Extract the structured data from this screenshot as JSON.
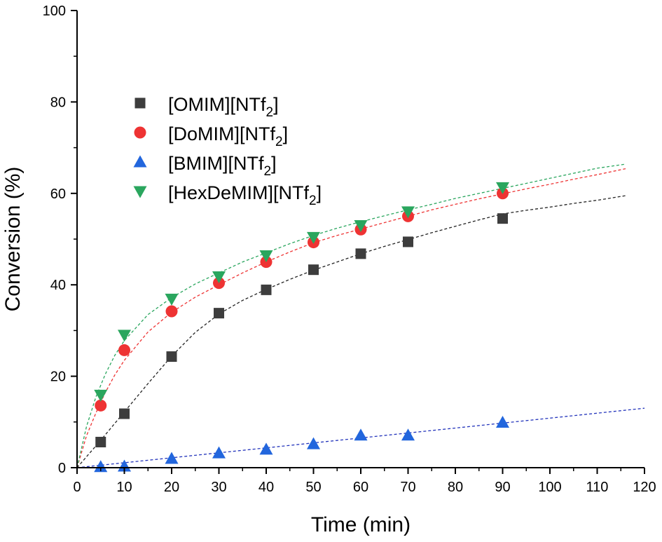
{
  "chart_data": {
    "type": "scatter",
    "xlabel": "Time (min)",
    "ylabel": "Conversion (%)",
    "xlim": [
      0,
      120
    ],
    "ylim": [
      0,
      100
    ],
    "xticks": [
      0,
      10,
      20,
      30,
      40,
      50,
      60,
      70,
      80,
      90,
      100,
      110,
      120
    ],
    "yticks": [
      0,
      20,
      40,
      60,
      80,
      100
    ],
    "grid": false,
    "legend_position": "top-left",
    "series": [
      {
        "name": "[OMIM][NTf2]",
        "label_main": "[OMIM][NTf",
        "label_sub": "2",
        "label_end": "]",
        "marker": "square",
        "color": "#3d3d3d",
        "fit_color": "#222222",
        "x": [
          5,
          10,
          20,
          30,
          40,
          50,
          60,
          70,
          90
        ],
        "y": [
          5.6,
          11.8,
          24.3,
          33.8,
          38.9,
          43.3,
          46.8,
          49.4,
          54.5
        ],
        "fit_x": [
          0,
          5,
          10,
          15,
          20,
          25,
          30,
          35,
          40,
          45,
          50,
          55,
          60,
          65,
          70,
          75,
          80,
          85,
          90,
          95,
          100,
          105,
          110,
          116
        ],
        "fit_y": [
          0,
          6.0,
          12.2,
          18.4,
          24.4,
          29.6,
          33.6,
          36.6,
          39.0,
          41.2,
          43.2,
          45.0,
          46.8,
          48.4,
          49.9,
          51.4,
          52.8,
          54.2,
          55.5,
          56.3,
          57.0,
          57.8,
          58.5,
          59.5
        ]
      },
      {
        "name": "[DoMIM][NTf2]",
        "label_main": "[DoMIM][NTf",
        "label_sub": "2",
        "label_end": "]",
        "marker": "circle",
        "color": "#ee3333",
        "fit_color": "#ee3333",
        "x": [
          5,
          10,
          20,
          30,
          40,
          50,
          60,
          70,
          90
        ],
        "y": [
          13.6,
          25.7,
          34.2,
          40.4,
          45.0,
          49.3,
          52.1,
          55.0,
          60.0
        ],
        "fit_x": [
          0,
          2,
          4,
          6,
          8,
          10,
          15,
          20,
          25,
          30,
          35,
          40,
          45,
          50,
          55,
          60,
          65,
          70,
          75,
          80,
          85,
          90,
          95,
          100,
          105,
          110,
          116
        ],
        "fit_y": [
          0,
          7.0,
          12.0,
          16.5,
          20.3,
          23.5,
          29.7,
          34.0,
          37.3,
          40.0,
          42.6,
          45.0,
          47.2,
          49.2,
          50.8,
          52.2,
          53.6,
          55.0,
          56.4,
          57.6,
          58.8,
          59.9,
          61.0,
          62.0,
          63.1,
          64.1,
          65.4
        ]
      },
      {
        "name": "[BMIM][NTf2]",
        "label_main": "[BMIM][NTf",
        "label_sub": "2",
        "label_end": "]",
        "marker": "triangle-up",
        "color": "#2266dd",
        "fit_color": "#2233bb",
        "x": [
          5,
          10,
          20,
          30,
          40,
          50,
          60,
          70,
          90
        ],
        "y": [
          0.2,
          0.3,
          2.0,
          3.2,
          4.0,
          5.2,
          7.1,
          7.1,
          9.9
        ],
        "fit_x": [
          0,
          120
        ],
        "fit_y": [
          0,
          13.0
        ]
      },
      {
        "name": "[HexDeMIM][NTf2]",
        "label_main": "[HexDeMIM][NTf",
        "label_sub": "2",
        "label_end": "]",
        "marker": "triangle-down",
        "color": "#2aa65e",
        "fit_color": "#2aa65e",
        "x": [
          5,
          10,
          20,
          30,
          40,
          50,
          60,
          70,
          90
        ],
        "y": [
          15.9,
          29.0,
          36.9,
          41.8,
          46.4,
          50.4,
          53.0,
          56.0,
          61.3
        ],
        "fit_x": [
          0,
          2,
          4,
          6,
          8,
          10,
          15,
          20,
          25,
          30,
          35,
          40,
          45,
          50,
          55,
          60,
          65,
          70,
          75,
          80,
          85,
          90,
          95,
          100,
          105,
          110,
          116
        ],
        "fit_y": [
          0,
          9.0,
          15.5,
          20.5,
          24.6,
          27.8,
          33.5,
          37.2,
          40.2,
          42.6,
          45.0,
          47.0,
          49.0,
          50.8,
          52.4,
          53.8,
          55.1,
          56.4,
          57.6,
          58.9,
          60.0,
          61.1,
          62.2,
          63.3,
          64.4,
          65.5,
          66.4
        ]
      }
    ]
  }
}
